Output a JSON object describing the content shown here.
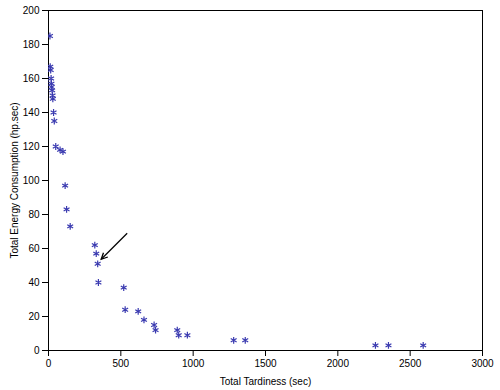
{
  "chart_data": {
    "type": "scatter",
    "x_label": "Total Tardiness (sec)",
    "y_label": "Total Energy Consumption (hp.sec)",
    "x": [
      10,
      12,
      15,
      18,
      20,
      22,
      25,
      28,
      30,
      35,
      40,
      50,
      80,
      100,
      115,
      125,
      150,
      320,
      330,
      340,
      345,
      520,
      530,
      620,
      660,
      730,
      740,
      890,
      900,
      960,
      1280,
      1360,
      2260,
      2350,
      2590
    ],
    "values": [
      185,
      167,
      165,
      160,
      157,
      155,
      153,
      150,
      148,
      140,
      135,
      120,
      118,
      117,
      97,
      83,
      73,
      62,
      57,
      51,
      40,
      37,
      24,
      23,
      18,
      15,
      12,
      12,
      9,
      9,
      6,
      6,
      3,
      3,
      3
    ],
    "color": "#3a3ab0",
    "marker": "asterisk",
    "xlim": [
      0,
      3000
    ],
    "xticks": [
      0,
      500,
      1000,
      1500,
      2000,
      2500,
      3000
    ],
    "ylim": [
      0,
      200
    ],
    "yticks": [
      0,
      20,
      40,
      60,
      80,
      100,
      120,
      140,
      160,
      180,
      200
    ],
    "grid": false,
    "annotations": [
      {
        "marker": "arrow",
        "x": 340,
        "y": 51
      }
    ]
  }
}
